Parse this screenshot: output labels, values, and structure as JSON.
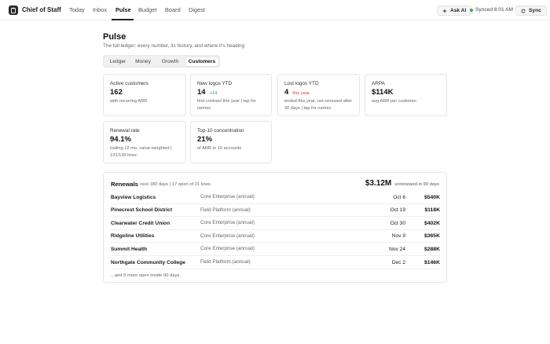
{
  "app": {
    "brand": "Chief of Staff"
  },
  "nav": {
    "items": [
      {
        "label": "Today"
      },
      {
        "label": "Inbox"
      },
      {
        "label": "Pulse"
      },
      {
        "label": "Budget"
      },
      {
        "label": "Board"
      },
      {
        "label": "Digest"
      }
    ],
    "active": "Pulse"
  },
  "toolbar": {
    "ask_ai_label": "Ask AI",
    "synced_label": "Synced 8:01 AM",
    "sync_label": "Sync"
  },
  "header": {
    "title": "Pulse",
    "subtitle": "The full ledger: every number, its history, and where it's heading"
  },
  "tabs": {
    "items": [
      {
        "label": "Ledger"
      },
      {
        "label": "Money"
      },
      {
        "label": "Growth"
      },
      {
        "label": "Customers"
      }
    ],
    "active": "Customers"
  },
  "metrics": [
    {
      "label": "Active customers",
      "value": "162",
      "desc": "with recurring ARR"
    },
    {
      "label": "New logos YTD",
      "value": "14",
      "delta": "+14",
      "desc": "first contract this year | tap for names"
    },
    {
      "label": "Lost logos YTD",
      "value": "4",
      "delta": "this year",
      "desc": "ended this year, not renewed after 30 days | tap for names"
    },
    {
      "label": "ARPA",
      "value": "$114K",
      "desc": "avg ARR per customer"
    },
    {
      "label": "Renewal rate",
      "value": "94.1%",
      "desc": "trailing 12 mo, value-weighted | 131/139 lines"
    },
    {
      "label": "Top-10 concentration",
      "value": "21%",
      "desc": "of ARR in 10 accounts"
    }
  ],
  "renewals": {
    "title": "Renewals",
    "meta": "next 180 days | 17 open of 21 lines",
    "total": "$3.12M",
    "total_note": "unrenewed in 90 days",
    "rows": [
      {
        "name": "Bayview Logistics",
        "plan": "Core Enterprise (annual)",
        "date": "Oct 6",
        "amount": "$540K"
      },
      {
        "name": "Pinecrest School District",
        "plan": "Field Platform (annual)",
        "date": "Oct 19",
        "amount": "$118K"
      },
      {
        "name": "Clearwater Credit Union",
        "plan": "Core Enterprise (annual)",
        "date": "Oct 30",
        "amount": "$402K"
      },
      {
        "name": "Ridgeline Utilities",
        "plan": "Core Enterprise (annual)",
        "date": "Nov 9",
        "amount": "$365K"
      },
      {
        "name": "Summit Health",
        "plan": "Core Enterprise (annual)",
        "date": "Nov 24",
        "amount": "$288K"
      },
      {
        "name": "Northgate Community College",
        "plan": "Field Platform (annual)",
        "date": "Dec 2",
        "amount": "$146K"
      }
    ],
    "more": "...and 5 more open inside 90 days."
  },
  "colors": {
    "positive": "#2e9e53",
    "negative": "#d23c3c",
    "status_dot": "#3aa757"
  },
  "icons": {
    "logo": "clipboard-icon",
    "ask_ai": "sparkle-icon",
    "sync": "refresh-icon"
  }
}
